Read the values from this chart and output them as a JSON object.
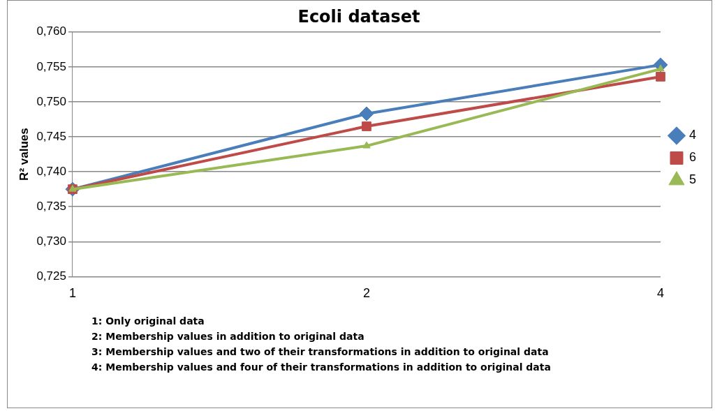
{
  "chart_data": {
    "type": "line",
    "title": "Ecoli dataset",
    "ylabel": "R² values",
    "categories": [
      "1",
      "2",
      "4"
    ],
    "series": [
      {
        "name": "4",
        "color": "#4a7ebb",
        "marker": "diamond",
        "values": [
          0.7375,
          0.7483,
          0.7553
        ]
      },
      {
        "name": "6",
        "color": "#be4b48",
        "marker": "square",
        "values": [
          0.7375,
          0.7465,
          0.7536
        ]
      },
      {
        "name": "5",
        "color": "#98b954",
        "marker": "triangle",
        "values": [
          0.7375,
          0.7437,
          0.7547
        ]
      }
    ],
    "ylim": [
      0.725,
      0.76
    ],
    "yticks": [
      {
        "value": 0.725,
        "label": "0,725"
      },
      {
        "value": 0.73,
        "label": "0,730"
      },
      {
        "value": 0.735,
        "label": "0,735"
      },
      {
        "value": 0.74,
        "label": "0,740"
      },
      {
        "value": 0.745,
        "label": "0,745"
      },
      {
        "value": 0.75,
        "label": "0,750"
      },
      {
        "value": 0.755,
        "label": "0,755"
      },
      {
        "value": 0.76,
        "label": "0,760"
      }
    ],
    "grid": "y",
    "legend": "right",
    "line_style": "solid",
    "annotations": [
      "1: Only original data",
      "2: Membership values in addition to original data",
      "3: Membership values and two of their transformations in addition to original data",
      "4: Membership values and four of their transformations in addition to original data"
    ]
  }
}
